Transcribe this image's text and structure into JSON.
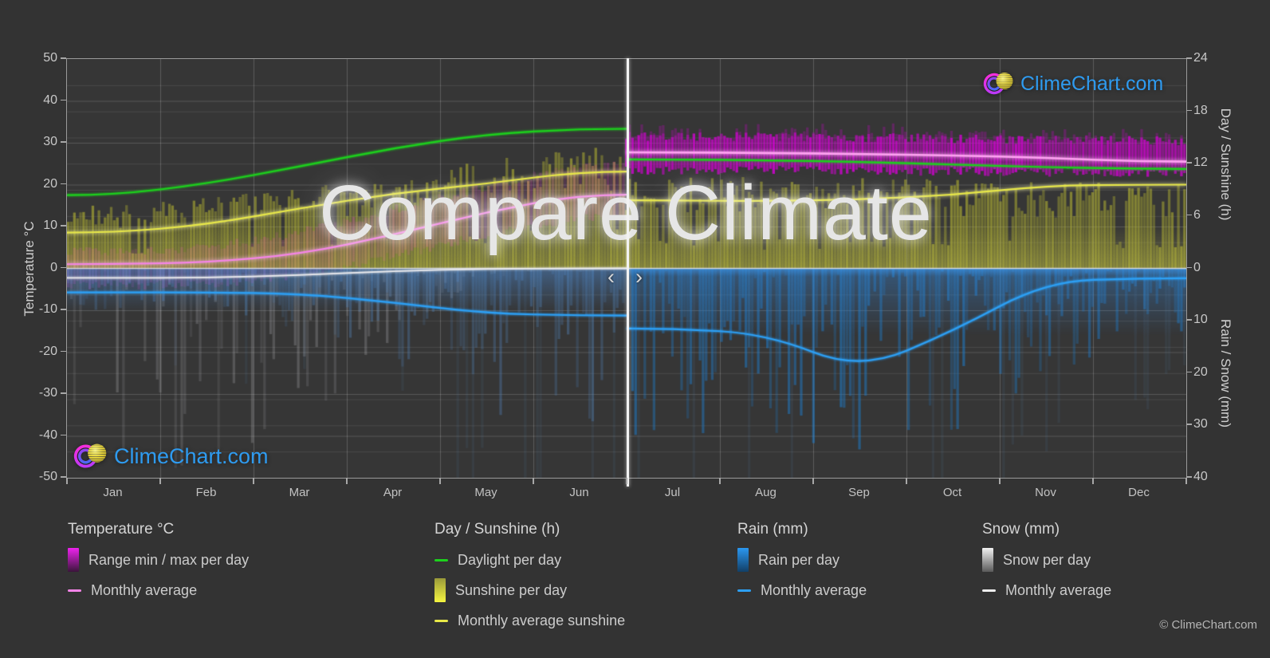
{
  "watermark": "Compare Climate",
  "brand": {
    "logo_text": "ClimeChart.com",
    "copyright": "© ClimeChart.com",
    "logo_text_color": "#2e9bf0"
  },
  "divider": {
    "prev": "‹",
    "next": "›"
  },
  "axes": {
    "left": {
      "title": "Temperature °C",
      "ticks": [
        50,
        40,
        30,
        20,
        10,
        0,
        -10,
        -20,
        -30,
        -40,
        -50
      ]
    },
    "right_top": {
      "title": "Day / Sunshine (h)",
      "ticks": [
        24,
        18,
        12,
        6,
        0
      ]
    },
    "right_bottom": {
      "title": "Rain / Snow (mm)",
      "ticks": [
        10,
        20,
        30,
        40
      ]
    }
  },
  "months": [
    "Jan",
    "Feb",
    "Mar",
    "Apr",
    "May",
    "Jun",
    "Jul",
    "Aug",
    "Sep",
    "Oct",
    "Nov",
    "Dec"
  ],
  "legend": {
    "groups": [
      {
        "title": "Temperature °C",
        "items": [
          {
            "swatch": "bar",
            "colors": [
              "#ee22ee",
              "#3a153a"
            ],
            "label": "Range min / max per day"
          },
          {
            "swatch": "line",
            "colors": [
              "#f584e8"
            ],
            "label": "Monthly average"
          }
        ]
      },
      {
        "title": "Day / Sunshine (h)",
        "items": [
          {
            "swatch": "line",
            "colors": [
              "#1dd11d"
            ],
            "label": "Daylight per day"
          },
          {
            "swatch": "bar",
            "colors": [
              "#9a9a3a",
              "#f5f540"
            ],
            "label": "Sunshine per day"
          },
          {
            "swatch": "line",
            "colors": [
              "#e8e848"
            ],
            "label": "Monthly average sunshine"
          }
        ]
      },
      {
        "title": "Rain (mm)",
        "items": [
          {
            "swatch": "bar",
            "colors": [
              "#2b97f0",
              "#123f66"
            ],
            "label": "Rain per day"
          },
          {
            "swatch": "line",
            "colors": [
              "#2da0f5"
            ],
            "label": "Monthly average"
          }
        ]
      },
      {
        "title": "Snow (mm)",
        "items": [
          {
            "swatch": "bar",
            "colors": [
              "#f2f2f2",
              "#5a5a5a"
            ],
            "label": "Snow per day"
          },
          {
            "swatch": "line",
            "colors": [
              "#eeeeee"
            ],
            "label": "Monthly average"
          }
        ]
      }
    ]
  },
  "chart_data": {
    "type": "composite-climate",
    "title": "Compare Climate",
    "months": [
      "Jan",
      "Feb",
      "Mar",
      "Apr",
      "May",
      "Jun",
      "Jul",
      "Aug",
      "Sep",
      "Oct",
      "Nov",
      "Dec"
    ],
    "divider_after_month": "Jun",
    "axis_ranges": {
      "temperature_c": [
        -50,
        50
      ],
      "day_sunshine_h": [
        0,
        24
      ],
      "rain_snow_mm": [
        0,
        40
      ]
    },
    "grid": {
      "temp_step": 10,
      "day_step": 3,
      "rain_step": 5,
      "month_lines": true
    },
    "series": {
      "daylight_h": [
        8.4,
        9.7,
        11.7,
        13.8,
        15.4,
        16.0,
        12.5,
        12.4,
        12.2,
        11.9,
        11.6,
        11.4
      ],
      "sunshine_avg_h": [
        4.1,
        5.0,
        6.9,
        8.6,
        9.7,
        11.1,
        7.8,
        7.7,
        7.9,
        8.4,
        9.5,
        9.6
      ],
      "sunshine_max_h": [
        7.2,
        8.2,
        9.3,
        10.6,
        12.4,
        13.9,
        10.6,
        10.6,
        10.5,
        10.3,
        10.0,
        9.8
      ],
      "temp_avg_c": [
        1.0,
        1.4,
        3.4,
        8.0,
        13.5,
        17.6,
        27.7,
        27.6,
        27.3,
        27.0,
        26.4,
        25.5
      ],
      "temp_min_c": [
        -4.0,
        -4.0,
        -1.5,
        3.0,
        8.0,
        12.0,
        23.5,
        23.5,
        23.3,
        23.2,
        23.0,
        22.8
      ],
      "temp_max_c": [
        4.0,
        5.0,
        8.5,
        14.0,
        19.5,
        24.5,
        31.5,
        31.5,
        31.3,
        31.0,
        30.8,
        30.5
      ],
      "rain_avg_mm": [
        4.6,
        4.6,
        4.8,
        6.5,
        8.6,
        9.0,
        11.5,
        12.5,
        19.5,
        12.0,
        2.5,
        1.9
      ],
      "rain_day_max_mm": [
        8,
        8,
        12,
        18,
        28,
        30,
        32,
        32,
        38,
        32,
        22,
        14
      ],
      "snow_avg_mm": [
        1.8,
        1.8,
        1.3,
        0.5,
        0.1,
        0,
        0,
        0,
        0,
        0,
        0,
        0
      ],
      "snow_day_max_mm": [
        35,
        40,
        30,
        15,
        2,
        0,
        0,
        0,
        0,
        0,
        0,
        0
      ]
    },
    "colors": {
      "daylight_line": "#1dd11d",
      "sunshine_fill": "#b8b832",
      "sunshine_avg_line": "#e8e848",
      "temp_range_left": "#fa3cd2",
      "temp_range_right": "#d700d7",
      "temp_avg_line": "#f584e8",
      "rain_fill": "#1973c3",
      "rain_avg_line": "#2da0f5",
      "snow_fill": "#d2d2d7",
      "snow_avg_line": "#ebebee",
      "zero_line": "#d8d8d8"
    },
    "legend_position": "bottom"
  }
}
